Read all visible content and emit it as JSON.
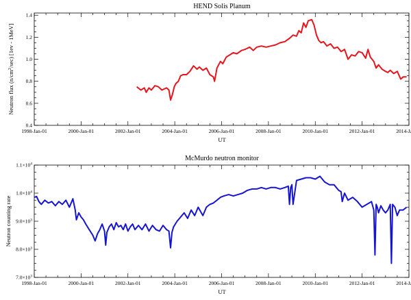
{
  "chart_data": [
    {
      "type": "line",
      "title": "HEND Solis Planum",
      "xlabel": "UT",
      "ylabel_prefix": "Neutron flux (n/cm",
      "ylabel_sup": "2",
      "ylabel_suffix": "/sec) [1ev - 1MeV]",
      "x_ticks": [
        "1998-Jan-01",
        "2000-Jan-01",
        "2002-Jan-01",
        "2004-Jan-01",
        "2006-Jan-01",
        "2008-Jan-01",
        "2010-Jan-01",
        "2012-Jan-01",
        "2014-Jan-01"
      ],
      "y_ticks": [
        "0.4",
        "0.6",
        "0.8",
        "1.0",
        "1.2",
        "1.4"
      ],
      "xlim": [
        1998.0,
        2014.0
      ],
      "ylim": [
        0.4,
        1.42
      ],
      "color": "#e8141c",
      "series": [
        {
          "x": [
            2002.38,
            2002.55,
            2002.7,
            2002.78,
            2002.9,
            2003.0,
            2003.15,
            2003.3,
            2003.45,
            2003.55,
            2003.65,
            2003.75,
            2003.82,
            2003.9,
            2003.98,
            2004.05,
            2004.15,
            2004.25,
            2004.35,
            2004.5,
            2004.65,
            2004.8,
            2004.95,
            2005.05,
            2005.2,
            2005.35,
            2005.5,
            2005.65,
            2005.7,
            2005.8,
            2005.95,
            2006.05,
            2006.2,
            2006.35,
            2006.5,
            2006.65,
            2006.85,
            2007.0,
            2007.2,
            2007.35,
            2007.5,
            2007.7,
            2007.9,
            2008.1,
            2008.3,
            2008.5,
            2008.7,
            2008.9,
            2009.05,
            2009.2,
            2009.3,
            2009.4,
            2009.5,
            2009.6,
            2009.7,
            2009.85,
            2009.95,
            2010.05,
            2010.15,
            2010.25,
            2010.35,
            2010.5,
            2010.65,
            2010.8,
            2010.95,
            2011.1,
            2011.25,
            2011.4,
            2011.55,
            2011.7,
            2011.85,
            2012.0,
            2012.15,
            2012.25,
            2012.35,
            2012.5,
            2012.6,
            2012.7,
            2012.85,
            2013.0,
            2013.1,
            2013.2,
            2013.35,
            2013.5,
            2013.65,
            2013.75,
            2013.9
          ],
          "y": [
            0.75,
            0.72,
            0.74,
            0.7,
            0.74,
            0.72,
            0.76,
            0.75,
            0.72,
            0.73,
            0.74,
            0.72,
            0.63,
            0.68,
            0.75,
            0.78,
            0.8,
            0.85,
            0.86,
            0.86,
            0.89,
            0.94,
            0.91,
            0.93,
            0.9,
            0.92,
            0.86,
            0.84,
            0.8,
            0.92,
            0.98,
            0.96,
            1.02,
            1.04,
            1.06,
            1.05,
            1.08,
            1.09,
            1.11,
            1.08,
            1.11,
            1.12,
            1.11,
            1.12,
            1.13,
            1.15,
            1.16,
            1.19,
            1.22,
            1.21,
            1.26,
            1.24,
            1.33,
            1.29,
            1.35,
            1.36,
            1.31,
            1.22,
            1.17,
            1.15,
            1.16,
            1.12,
            1.14,
            1.1,
            1.11,
            1.07,
            1.09,
            1.0,
            1.04,
            1.03,
            1.07,
            1.06,
            1.01,
            1.09,
            1.02,
            0.98,
            0.92,
            0.95,
            0.91,
            0.89,
            0.88,
            0.9,
            0.87,
            0.89,
            0.82,
            0.84,
            0.84
          ]
        }
      ]
    },
    {
      "type": "line",
      "title": "McMurdo neutron monitor",
      "xlabel": "UT",
      "ylabel": "Neutron counting rate",
      "x_ticks": [
        "1998-Jan-01",
        "2000-Jan-01",
        "2002-Jan-01",
        "2004-Jan-01",
        "2006-Jan-01",
        "2008-Jan-01",
        "2010-Jan-01",
        "2012-Jan-01",
        "2014-Jan-01"
      ],
      "y_ticks": [
        {
          "mant": "7.0",
          "exp": "3"
        },
        {
          "mant": "8.0",
          "exp": "3"
        },
        {
          "mant": "9.0",
          "exp": "3"
        },
        {
          "mant": "1.0",
          "exp": "4"
        },
        {
          "mant": "1.1",
          "exp": "4"
        }
      ],
      "xlim": [
        1998.0,
        2014.0
      ],
      "ylim": [
        7000,
        11000
      ],
      "color": "#1414d2",
      "series": [
        {
          "x": [
            1998.0,
            1998.1,
            1998.2,
            1998.3,
            1998.45,
            1998.6,
            1998.75,
            1998.9,
            1999.05,
            1999.2,
            1999.35,
            1999.5,
            1999.65,
            1999.75,
            1999.8,
            1999.9,
            2000.0,
            2000.1,
            2000.2,
            2000.35,
            2000.5,
            2000.6,
            2000.7,
            2000.8,
            2000.9,
            2001.0,
            2001.05,
            2001.1,
            2001.2,
            2001.3,
            2001.4,
            2001.5,
            2001.6,
            2001.7,
            2001.8,
            2001.9,
            2002.0,
            2002.1,
            2002.2,
            2002.3,
            2002.45,
            2002.6,
            2002.75,
            2002.9,
            2003.05,
            2003.2,
            2003.35,
            2003.5,
            2003.65,
            2003.75,
            2003.82,
            2003.88,
            2003.95,
            2004.1,
            2004.25,
            2004.4,
            2004.55,
            2004.7,
            2004.85,
            2005.0,
            2005.1,
            2005.2,
            2005.35,
            2005.5,
            2005.65,
            2005.8,
            2005.95,
            2006.1,
            2006.3,
            2006.5,
            2006.7,
            2006.9,
            2007.1,
            2007.3,
            2007.5,
            2007.7,
            2007.9,
            2008.1,
            2008.3,
            2008.5,
            2008.7,
            2008.85,
            2008.9,
            2008.95,
            2009.0,
            2009.05,
            2009.2,
            2009.4,
            2009.6,
            2009.8,
            2010.0,
            2010.2,
            2010.4,
            2010.6,
            2010.8,
            2011.0,
            2011.1,
            2011.15,
            2011.25,
            2011.4,
            2011.6,
            2011.8,
            2012.0,
            2012.2,
            2012.4,
            2012.5,
            2012.55,
            2012.6,
            2012.65,
            2012.7,
            2012.8,
            2012.9,
            2013.0,
            2013.1,
            2013.2,
            2013.25,
            2013.3,
            2013.4,
            2013.5,
            2013.6,
            2013.75,
            2013.9
          ],
          "y": [
            9850,
            9880,
            9700,
            9600,
            9750,
            9650,
            9700,
            9550,
            9700,
            9600,
            9750,
            9500,
            9800,
            9400,
            9050,
            9300,
            9150,
            9050,
            8900,
            8700,
            8500,
            8300,
            8550,
            8700,
            8900,
            8650,
            8150,
            8600,
            8800,
            8900,
            8700,
            8950,
            8800,
            8850,
            8700,
            8900,
            8650,
            8800,
            8900,
            8700,
            8850,
            8700,
            8900,
            8650,
            8850,
            8700,
            8650,
            8850,
            8700,
            8650,
            8050,
            8600,
            8800,
            9000,
            9150,
            9300,
            9100,
            9400,
            9200,
            9500,
            9350,
            9200,
            9500,
            9600,
            9650,
            9750,
            9850,
            9900,
            9950,
            9900,
            9950,
            10000,
            10100,
            10150,
            10150,
            10200,
            10150,
            10200,
            10200,
            10150,
            10200,
            10250,
            9600,
            10200,
            10300,
            9600,
            10450,
            10500,
            10550,
            10550,
            10500,
            10600,
            10400,
            10300,
            10300,
            10100,
            10050,
            9700,
            10000,
            9750,
            9850,
            9700,
            9500,
            9600,
            9700,
            9400,
            7800,
            9600,
            9500,
            9300,
            9550,
            9400,
            9300,
            9400,
            9600,
            7500,
            9600,
            9500,
            9200,
            9400,
            9400,
            9500
          ]
        }
      ]
    }
  ]
}
